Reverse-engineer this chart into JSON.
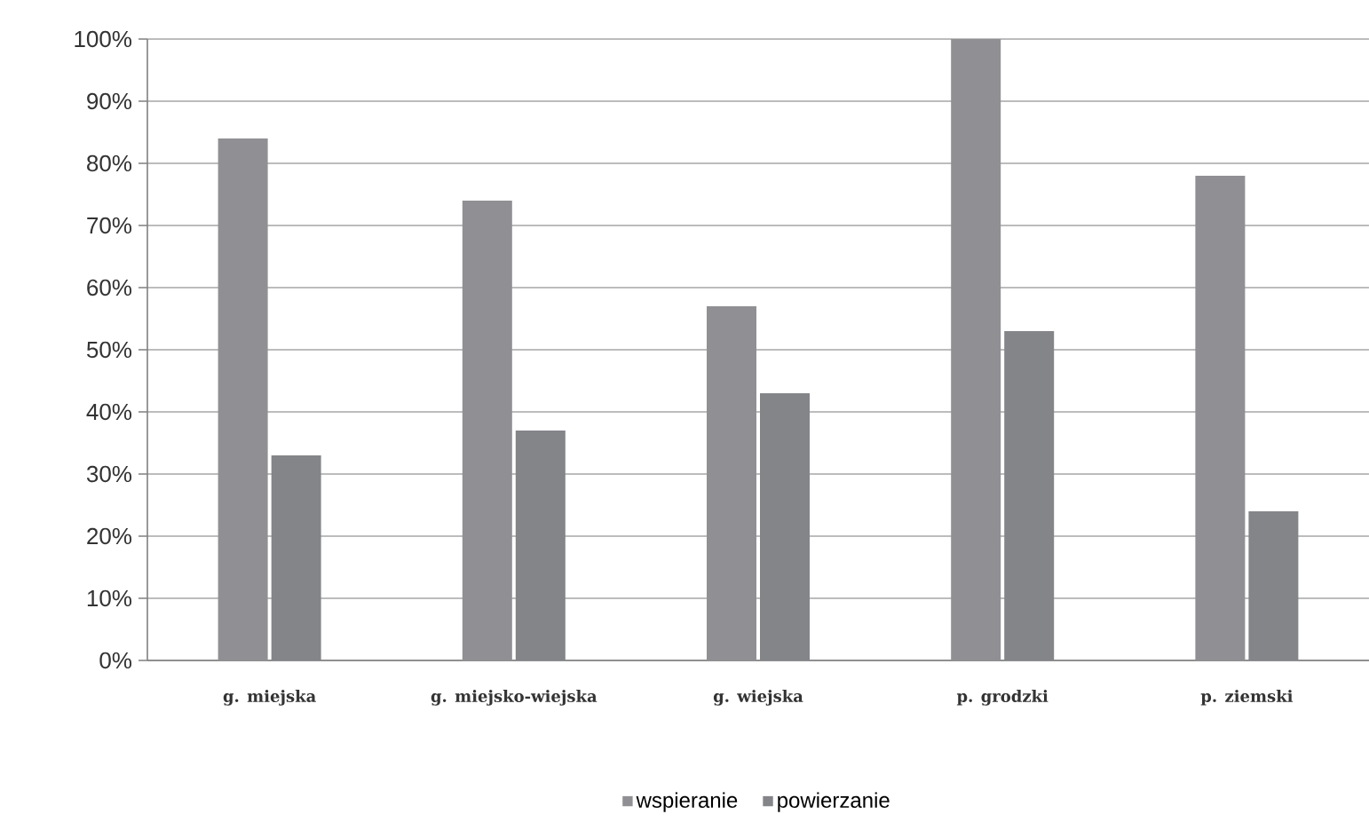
{
  "chart_data": {
    "type": "bar",
    "categories": [
      "g. miejska",
      "g. miejsko-wiejska",
      "g. wiejska",
      "p. grodzki",
      "p. ziemski"
    ],
    "series": [
      {
        "name": "wspieranie",
        "color": "#909094",
        "values": [
          84,
          74,
          57,
          100,
          78
        ]
      },
      {
        "name": "powierzanie",
        "color": "#848589",
        "values": [
          33,
          37,
          43,
          53,
          24
        ]
      }
    ],
    "ylim": [
      0,
      100
    ],
    "yticks": [
      {
        "value": 0,
        "label": "0%"
      },
      {
        "value": 10,
        "label": "10%"
      },
      {
        "value": 20,
        "label": "20%"
      },
      {
        "value": 30,
        "label": "30%"
      },
      {
        "value": 40,
        "label": "40%"
      },
      {
        "value": 50,
        "label": "50%"
      },
      {
        "value": 60,
        "label": "60%"
      },
      {
        "value": 70,
        "label": "70%"
      },
      {
        "value": 80,
        "label": "80%"
      },
      {
        "value": 90,
        "label": "90%"
      },
      {
        "value": 100,
        "label": "100%"
      }
    ],
    "grid": "y",
    "legend": "bottom"
  }
}
